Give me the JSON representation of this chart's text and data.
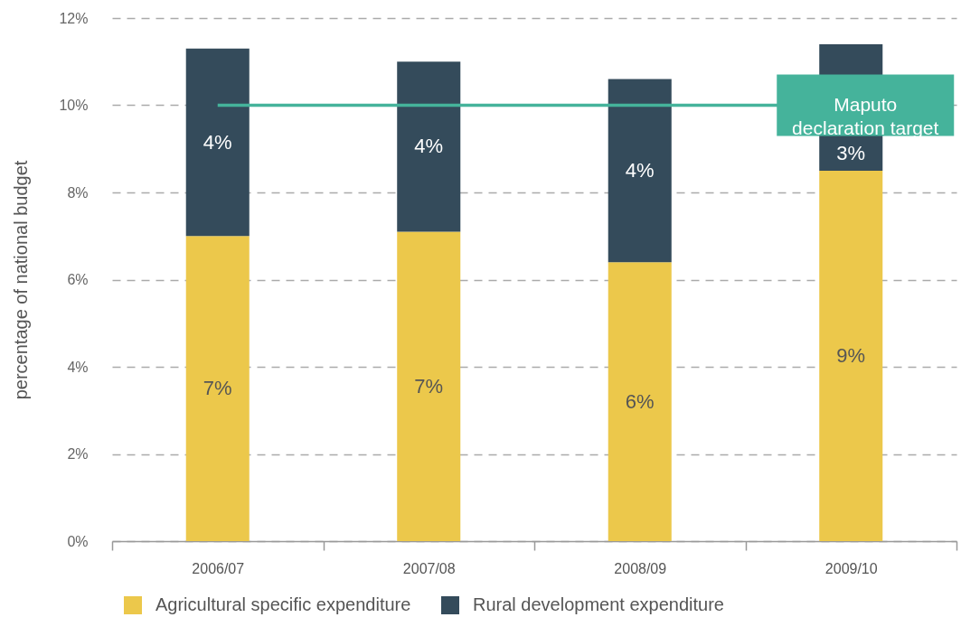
{
  "chart_data": {
    "type": "bar",
    "stacked": true,
    "categories": [
      "2006/07",
      "2007/08",
      "2008/09",
      "2009/10"
    ],
    "series": [
      {
        "name": "Agricultural specific expenditure",
        "color": "#ecc84b",
        "values": [
          7.0,
          7.1,
          6.4,
          8.5
        ],
        "value_labels": [
          "7%",
          "7%",
          "6%",
          "9%"
        ]
      },
      {
        "name": "Rural development expenditure",
        "color": "#344b5b",
        "values": [
          4.3,
          3.9,
          4.2,
          2.9
        ],
        "value_labels": [
          "4%",
          "4%",
          "4%",
          "3%"
        ]
      }
    ],
    "ylabel": "percentage of national budget",
    "ylim": [
      0,
      12
    ],
    "yticks": [
      {
        "value": 0,
        "label": "0%"
      },
      {
        "value": 2,
        "label": "2%"
      },
      {
        "value": 4,
        "label": "4%"
      },
      {
        "value": 6,
        "label": "6%"
      },
      {
        "value": 8,
        "label": "8%"
      },
      {
        "value": 10,
        "label": "10%"
      },
      {
        "value": 12,
        "label": "12%"
      }
    ],
    "grid": "y",
    "legend": "bottom",
    "ref_lines": [
      {
        "axis": "y",
        "value": 10,
        "label": "Maputo declaration target",
        "color": "#45b39b"
      }
    ]
  }
}
